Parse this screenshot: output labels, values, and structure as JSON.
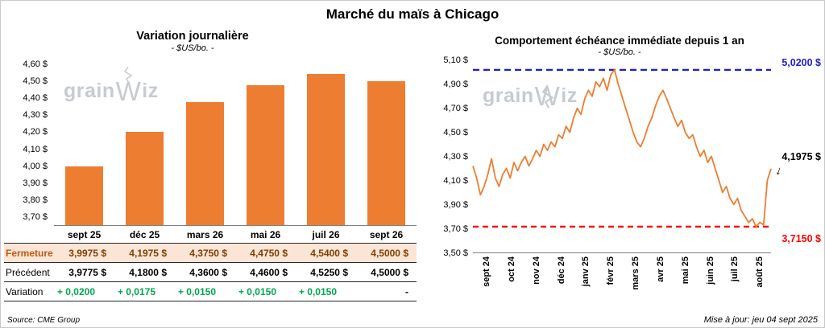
{
  "header": {
    "title": "Marché du maïs à Chicago"
  },
  "footer": {
    "source": "Source: CME Group",
    "updated": "Mise à jour: jeu 04 sept 2025"
  },
  "watermark": {
    "text_pre": "grain",
    "text_w": "W",
    "text_post": "iz"
  },
  "icons": {
    "last_value_arrow": "↓"
  },
  "colors": {
    "bar": "#ED7D31",
    "line": "#ED7D31",
    "max_line": "#2020CC",
    "min_line": "#FF0000",
    "variation_green": "#00A650",
    "fermeture_bg": "#FBE5D6"
  },
  "chart_data": [
    {
      "type": "bar",
      "title": "Variation journalière",
      "subtitle": "- $US/bo. -",
      "categories": [
        "sept 25",
        "déc 25",
        "mars 26",
        "mai 26",
        "juil 26",
        "sept 26"
      ],
      "values": [
        3.9975,
        4.1975,
        4.375,
        4.475,
        4.54,
        4.5
      ],
      "ylim": [
        3.65,
        4.65
      ],
      "yticks": {
        "min": 3.7,
        "max": 4.6,
        "step": 0.1
      },
      "bar_color": "#ED7D31",
      "grid": false,
      "table": {
        "rows": [
          {
            "label": "Fermeture",
            "values": [
              "3,9975 $",
              "4,1975 $",
              "4,3750 $",
              "4,4750 $",
              "4,5400 $",
              "4,5000 $"
            ]
          },
          {
            "label": "Précédent",
            "values": [
              "3,9775 $",
              "4,1800 $",
              "4,3600 $",
              "4,4600 $",
              "4,5250 $",
              "4,5000 $"
            ]
          },
          {
            "label": "Variation",
            "values": [
              "+ 0,0200",
              "+ 0,0175",
              "+ 0,0150",
              "+ 0,0150",
              "+ 0,0150",
              "-"
            ]
          }
        ]
      }
    },
    {
      "type": "line",
      "title": "Comportement échéance immédiate depuis 1 an",
      "subtitle": "- $US/bo. -",
      "x_labels": [
        "sept 24",
        "oct 24",
        "nov 24",
        "déc 24",
        "janv 25",
        "févr 25",
        "mars 25",
        "avr 25",
        "mai 25",
        "juin 25",
        "juil 25",
        "août 25"
      ],
      "ylim": [
        3.5,
        5.1
      ],
      "yticks": {
        "min": 3.5,
        "max": 5.1,
        "step": 0.2
      },
      "grid": false,
      "line_color": "#ED7D31",
      "max_line": {
        "value": 5.02,
        "label": "5,0200 $",
        "color": "#2020CC"
      },
      "min_line": {
        "value": 3.715,
        "label": "3,7150 $",
        "color": "#FF0000"
      },
      "last_point": {
        "value": 4.1975,
        "label": "4,1975 $"
      },
      "values": [
        4.22,
        4.12,
        3.98,
        4.05,
        4.15,
        4.28,
        4.12,
        4.05,
        4.15,
        4.2,
        4.12,
        4.25,
        4.18,
        4.25,
        4.3,
        4.22,
        4.28,
        4.35,
        4.3,
        4.4,
        4.35,
        4.42,
        4.38,
        4.48,
        4.45,
        4.55,
        4.5,
        4.62,
        4.7,
        4.65,
        4.78,
        4.85,
        4.8,
        4.92,
        4.88,
        4.95,
        4.85,
        4.98,
        5.02,
        4.9,
        4.8,
        4.7,
        4.6,
        4.5,
        4.42,
        4.38,
        4.45,
        4.55,
        4.62,
        4.72,
        4.8,
        4.85,
        4.78,
        4.7,
        4.62,
        4.55,
        4.6,
        4.5,
        4.45,
        4.48,
        4.38,
        4.3,
        4.35,
        4.25,
        4.3,
        4.2,
        4.1,
        4.0,
        4.05,
        3.95,
        3.9,
        3.95,
        3.85,
        3.8,
        3.75,
        3.78,
        3.715,
        3.75,
        3.73,
        4.1,
        4.1975
      ]
    }
  ]
}
